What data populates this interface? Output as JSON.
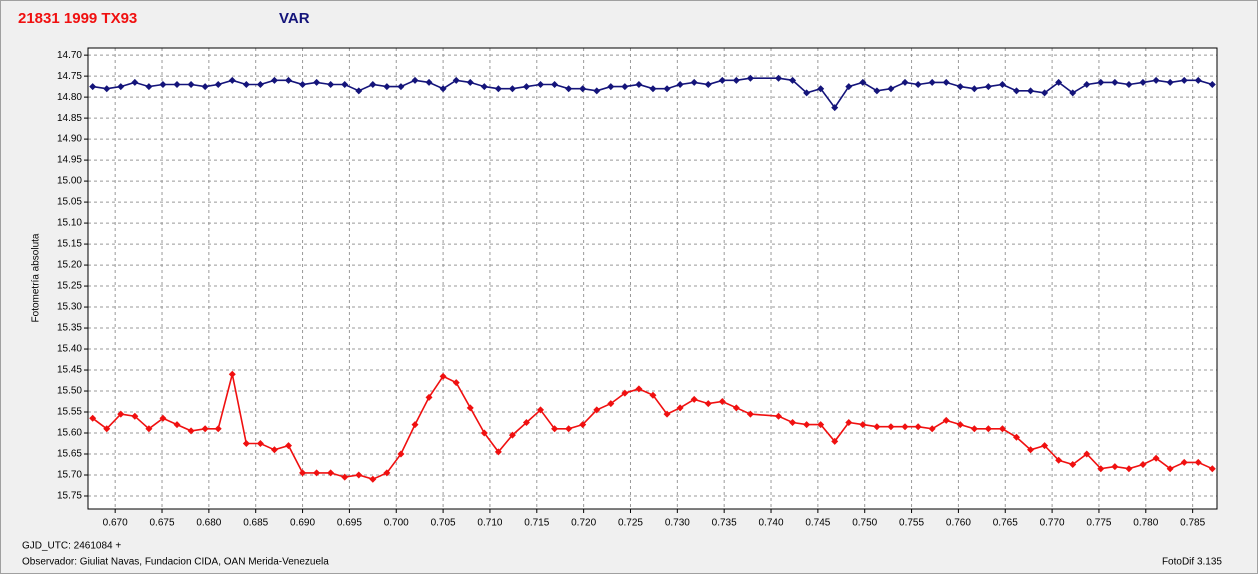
{
  "chart_data": {
    "type": "line",
    "y_label": "Fotometría absoluta",
    "footer": {
      "gjd": "GJD_UTC: 2461084 +",
      "observer": "Observador: Giuliat Navas, Fundacion CIDA, OAN  Merida-Venezuela",
      "software": "FotoDif 3.135"
    },
    "x": [
      0.6676,
      0.6691,
      0.6706,
      0.6721,
      0.6736,
      0.6751,
      0.6766,
      0.6781,
      0.6796,
      0.681,
      0.6825,
      0.684,
      0.6855,
      0.687,
      0.6885,
      0.69,
      0.6915,
      0.693,
      0.6945,
      0.696,
      0.6975,
      0.699,
      0.7005,
      0.702,
      0.7035,
      0.705,
      0.7064,
      0.7079,
      0.7094,
      0.7109,
      0.7124,
      0.7139,
      0.7154,
      0.7169,
      0.7184,
      0.7199,
      0.7214,
      0.7229,
      0.7244,
      0.7259,
      0.7274,
      0.7289,
      0.7303,
      0.7318,
      0.7333,
      0.7348,
      0.7363,
      0.7378,
      0.7408,
      0.7423,
      0.7438,
      0.7453,
      0.7468,
      0.7483,
      0.7498,
      0.7513,
      0.7528,
      0.7543,
      0.7557,
      0.7572,
      0.7587,
      0.7602,
      0.7617,
      0.7632,
      0.7647,
      0.7662,
      0.7677,
      0.7692,
      0.7707,
      0.7722,
      0.7737,
      0.7752,
      0.7767,
      0.7782,
      0.7797,
      0.7811,
      0.7826,
      0.7841,
      0.7856,
      0.7871
    ],
    "series": [
      {
        "name": "21831 1999 TX93",
        "color": "#f01010",
        "values": [
          15.565,
          15.59,
          15.555,
          15.56,
          15.59,
          15.565,
          15.58,
          15.595,
          15.59,
          15.59,
          15.46,
          15.625,
          15.625,
          15.64,
          15.63,
          15.695,
          15.695,
          15.695,
          15.705,
          15.7,
          15.71,
          15.695,
          15.65,
          15.58,
          15.515,
          15.465,
          15.48,
          15.54,
          15.6,
          15.645,
          15.605,
          15.575,
          15.545,
          15.59,
          15.59,
          15.58,
          15.545,
          15.53,
          15.505,
          15.495,
          15.51,
          15.555,
          15.54,
          15.52,
          15.53,
          15.525,
          15.54,
          15.555,
          15.56,
          15.575,
          15.58,
          15.58,
          15.62,
          15.575,
          15.58,
          15.585,
          15.585,
          15.585,
          15.585,
          15.59,
          15.57,
          15.58,
          15.59,
          15.59,
          15.59,
          15.61,
          15.64,
          15.63,
          15.665,
          15.675,
          15.65,
          15.685,
          15.68,
          15.685,
          15.675,
          15.66,
          15.685,
          15.67,
          15.67,
          15.685
        ]
      },
      {
        "name": "VAR",
        "color": "#14147a",
        "values": [
          14.775,
          14.78,
          14.775,
          14.765,
          14.775,
          14.77,
          14.77,
          14.77,
          14.775,
          14.77,
          14.76,
          14.77,
          14.77,
          14.76,
          14.76,
          14.77,
          14.765,
          14.77,
          14.77,
          14.785,
          14.77,
          14.775,
          14.775,
          14.76,
          14.765,
          14.78,
          14.76,
          14.765,
          14.775,
          14.78,
          14.78,
          14.775,
          14.77,
          14.77,
          14.78,
          14.78,
          14.785,
          14.775,
          14.775,
          14.77,
          14.78,
          14.78,
          14.77,
          14.765,
          14.77,
          14.76,
          14.76,
          14.755,
          14.755,
          14.76,
          14.79,
          14.78,
          14.825,
          14.775,
          14.765,
          14.785,
          14.78,
          14.765,
          14.77,
          14.765,
          14.765,
          14.775,
          14.78,
          14.775,
          14.77,
          14.785,
          14.785,
          14.79,
          14.765,
          14.79,
          14.77,
          14.765,
          14.765,
          14.77,
          14.765,
          14.76,
          14.765,
          14.76,
          14.76,
          14.77
        ]
      }
    ],
    "xlim": [
      0.6671,
      0.7876
    ],
    "ylim": [
      14.683,
      15.781
    ],
    "y_inverted": true,
    "grid": true,
    "xticks": [
      {
        "value": 0.67,
        "label": "0.670"
      },
      0.675,
      {
        "value": 0.68,
        "label": "0.680"
      },
      0.685,
      {
        "value": 0.69,
        "label": "0.690"
      },
      0.695,
      {
        "value": 0.7,
        "label": "0.700"
      },
      0.705,
      {
        "value": 0.71,
        "label": "0.710"
      },
      0.715,
      {
        "value": 0.72,
        "label": "0.720"
      },
      0.725,
      {
        "value": 0.73,
        "label": "0.730"
      },
      0.735,
      {
        "value": 0.74,
        "label": "0.740"
      },
      0.745,
      {
        "value": 0.75,
        "label": "0.750"
      },
      0.755,
      {
        "value": 0.76,
        "label": "0.760"
      },
      0.765,
      {
        "value": 0.77,
        "label": "0.770"
      },
      0.775,
      {
        "value": 0.78,
        "label": "0.780"
      },
      0.785
    ],
    "yticks": [
      {
        "value": 14.7,
        "label": "14.70"
      },
      14.75,
      {
        "value": 14.8,
        "label": "14.80"
      },
      14.85,
      {
        "value": 14.9,
        "label": "14.90"
      },
      14.95,
      {
        "value": 15,
        "label": "15.00"
      },
      15.05,
      {
        "value": 15.1,
        "label": "15.10"
      },
      15.15,
      {
        "value": 15.2,
        "label": "15.20"
      },
      15.25,
      {
        "value": 15.3,
        "label": "15.30"
      },
      15.35,
      {
        "value": 15.4,
        "label": "15.40"
      },
      15.45,
      {
        "value": 15.5,
        "label": "15.50"
      },
      15.55,
      {
        "value": 15.6,
        "label": "15.60"
      },
      15.65,
      {
        "value": 15.7,
        "label": "15.70"
      },
      15.75
    ]
  }
}
